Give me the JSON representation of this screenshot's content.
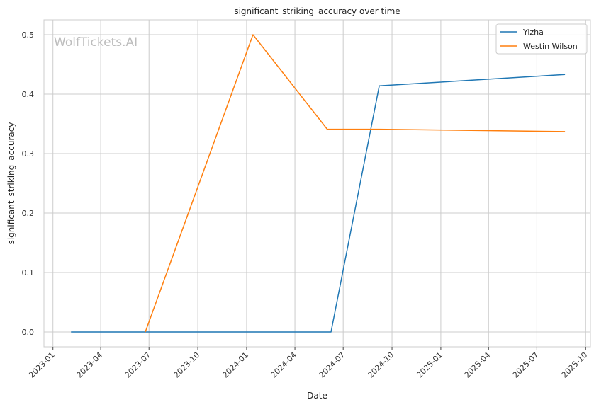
{
  "chart_data": {
    "type": "line",
    "title": "significant_striking_accuracy over time",
    "xlabel": "Date",
    "ylabel": "significant_striking_accuracy",
    "watermark": "WolfTickets.AI",
    "x_ticks": [
      "2023-01",
      "2023-04",
      "2023-07",
      "2023-10",
      "2024-01",
      "2024-04",
      "2024-07",
      "2024-10",
      "2025-01",
      "2025-04",
      "2025-07",
      "2025-10"
    ],
    "y_ticks": [
      "0.0",
      "0.1",
      "0.2",
      "0.3",
      "0.4",
      "0.5"
    ],
    "xlim": [
      "2022-12-15",
      "2025-10-10"
    ],
    "ylim": [
      -0.025,
      0.525
    ],
    "grid": true,
    "legend_position": "top-right",
    "series": [
      {
        "name": "Yizha",
        "color": "#1f77b4",
        "points": [
          {
            "x": "2023-02-04",
            "y": 0.0
          },
          {
            "x": "2024-06-08",
            "y": 0.0
          },
          {
            "x": "2024-09-07",
            "y": 0.414
          },
          {
            "x": "2025-08-23",
            "y": 0.433
          }
        ]
      },
      {
        "name": "Westin Wilson",
        "color": "#ff7f0e",
        "points": [
          {
            "x": "2023-06-24",
            "y": 0.0
          },
          {
            "x": "2024-01-13",
            "y": 0.5
          },
          {
            "x": "2024-06-01",
            "y": 0.341
          },
          {
            "x": "2024-09-07",
            "y": 0.341
          },
          {
            "x": "2025-08-23",
            "y": 0.337
          }
        ]
      }
    ]
  }
}
